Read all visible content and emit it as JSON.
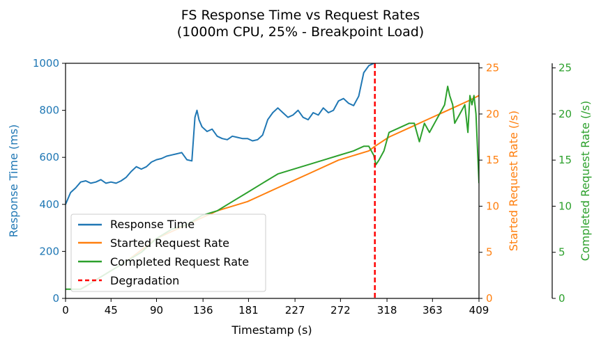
{
  "chart_data": {
    "type": "line",
    "title": "FS Response Time vs Request Rates",
    "subtitle": "(1000m CPU, 25% - Breakpoint Load)",
    "xlabel": "Timestamp (s)",
    "ylabel_left": "Response Time (ms)",
    "ylabel_right_1": "Started Request Rate (/s)",
    "ylabel_right_2": "Completed Request Rate (/s)",
    "xlim": [
      0,
      409
    ],
    "ylim_left": [
      0,
      1000
    ],
    "ylim_right": [
      0,
      25.5
    ],
    "x_ticks": [
      "0",
      "45",
      "90",
      "136",
      "181",
      "227",
      "272",
      "318",
      "363",
      "409"
    ],
    "y_left_ticks": [
      "0",
      "200",
      "400",
      "600",
      "800",
      "1000"
    ],
    "y_right_ticks": [
      "0",
      "5",
      "10",
      "15",
      "20",
      "25"
    ],
    "grid": false,
    "legend_position": "lower-left",
    "degradation_x": 306,
    "colors": {
      "response_time": "#1f77b4",
      "started_rate": "#ff7f0e",
      "completed_rate": "#2ca02c",
      "degradation": "#ff0000"
    },
    "series": [
      {
        "name": "Response Time",
        "axis": "left",
        "color": "#1f77b4",
        "x": [
          0,
          5,
          10,
          15,
          20,
          25,
          30,
          35,
          40,
          45,
          50,
          55,
          60,
          65,
          70,
          75,
          80,
          85,
          90,
          95,
          100,
          105,
          110,
          115,
          120,
          125,
          128,
          130,
          132,
          135,
          140,
          145,
          150,
          155,
          160,
          165,
          170,
          175,
          180,
          185,
          190,
          195,
          200,
          205,
          210,
          215,
          220,
          225,
          230,
          235,
          240,
          245,
          250,
          255,
          260,
          265,
          270,
          275,
          280,
          285,
          290,
          295,
          300,
          305
        ],
        "y": [
          400,
          450,
          470,
          495,
          500,
          490,
          495,
          505,
          490,
          495,
          490,
          500,
          515,
          540,
          560,
          550,
          560,
          580,
          590,
          595,
          605,
          610,
          615,
          620,
          590,
          585,
          770,
          800,
          760,
          730,
          710,
          720,
          690,
          680,
          675,
          690,
          685,
          680,
          680,
          670,
          675,
          695,
          760,
          790,
          810,
          790,
          770,
          780,
          800,
          770,
          760,
          790,
          780,
          810,
          790,
          800,
          840,
          850,
          830,
          820,
          860,
          960,
          990,
          1000
        ]
      },
      {
        "name": "Started Request Rate",
        "axis": "right",
        "color": "#ff7f0e",
        "x": [
          15,
          30,
          45,
          60,
          90,
          120,
          150,
          180,
          210,
          240,
          270,
          300,
          306,
          320,
          340,
          360,
          380,
          400,
          409
        ],
        "y": [
          1,
          2,
          3,
          4,
          6.5,
          8,
          9.5,
          10.5,
          12,
          13.5,
          15,
          16,
          16.5,
          17.5,
          18.5,
          19.5,
          20.5,
          21.5,
          22
        ]
      },
      {
        "name": "Completed Request Rate",
        "axis": "right",
        "color": "#2ca02c",
        "x": [
          0,
          10,
          15,
          20,
          30,
          45,
          60,
          75,
          90,
          105,
          120,
          135,
          150,
          165,
          180,
          195,
          210,
          225,
          240,
          255,
          270,
          285,
          295,
          300,
          305,
          307,
          310,
          315,
          320,
          330,
          340,
          345,
          350,
          355,
          360,
          365,
          370,
          375,
          378,
          380,
          383,
          385,
          390,
          395,
          398,
          400,
          402,
          404,
          406,
          409
        ],
        "y": [
          1,
          1,
          1,
          1.3,
          2,
          3,
          4,
          5,
          6.5,
          7.5,
          8,
          9,
          9.5,
          10.5,
          11.5,
          12.5,
          13.5,
          14,
          14.5,
          15,
          15.5,
          16,
          16.5,
          16.5,
          15.5,
          14.5,
          15,
          16,
          18,
          18.5,
          19,
          19,
          17,
          19,
          18,
          19,
          20,
          21,
          23,
          22,
          21,
          19,
          20,
          21,
          18,
          22,
          21,
          22,
          20,
          12.5
        ]
      }
    ],
    "degradation_label": "Degradation"
  }
}
